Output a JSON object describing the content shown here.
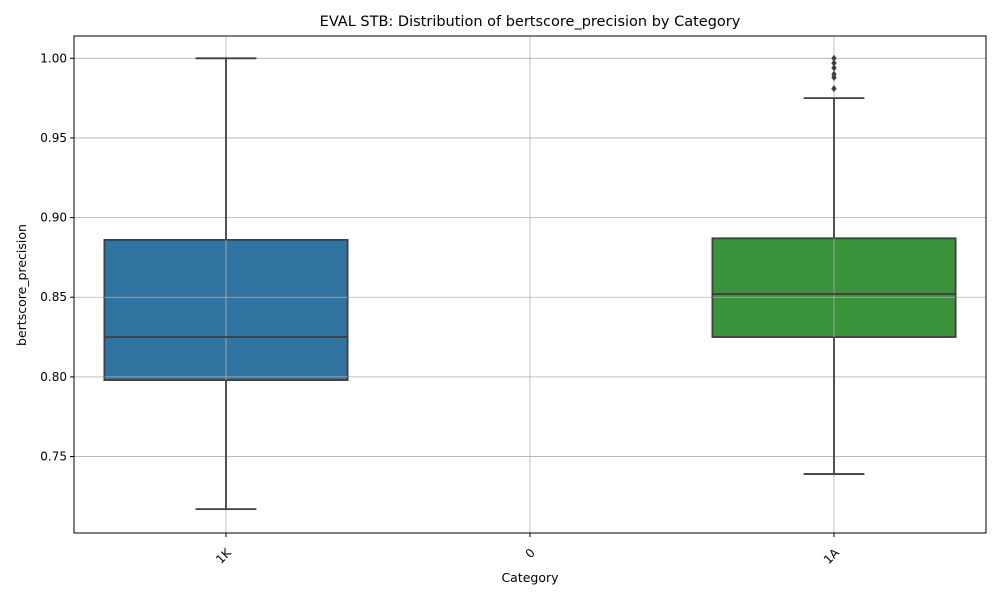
{
  "chart_data": {
    "type": "box",
    "title": "EVAL STB: Distribution of bertscore_precision by Category",
    "xlabel": "Category",
    "ylabel": "bertscore_precision",
    "categories": [
      "1K",
      "0",
      "1A"
    ],
    "ylim": [
      0.702,
      1.014
    ],
    "yticks": [
      0.75,
      0.8,
      0.85,
      0.9,
      0.95,
      1.0
    ],
    "ytick_labels": [
      "0.75",
      "0.80",
      "0.85",
      "0.90",
      "0.95",
      "1.00"
    ],
    "grid": true,
    "xtick_rotation_deg": 45,
    "boxes": [
      {
        "category": "1K",
        "whisker_low": 0.717,
        "q1": 0.798,
        "median": 0.825,
        "q3": 0.886,
        "whisker_high": 1.0,
        "outliers": [],
        "color": "#3274a1"
      },
      {
        "category": "0",
        "empty": true
      },
      {
        "category": "1A",
        "whisker_low": 0.739,
        "q1": 0.825,
        "median": 0.852,
        "q3": 0.887,
        "whisker_high": 0.975,
        "outliers": [
          0.981,
          0.988,
          0.99,
          0.994,
          0.997,
          1.0
        ],
        "color": "#3a923a"
      }
    ],
    "line_color": "#3f3f3f",
    "grid_color": "#b0b0b0"
  }
}
